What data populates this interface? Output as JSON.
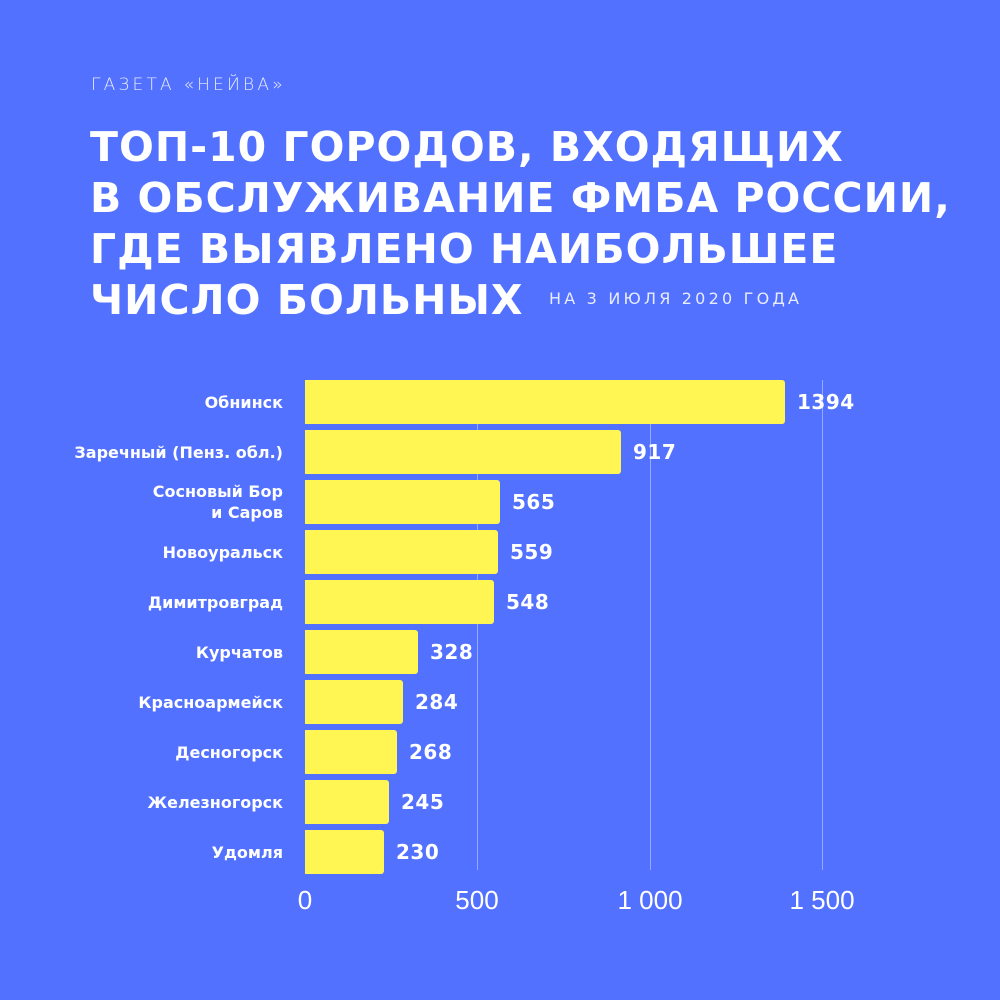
{
  "header": {
    "publisher": "ГАЗЕТА «НЕЙВА»",
    "title_lines": [
      "ТОП-10 ГОРОДОВ, ВХОДЯЩИХ",
      "В ОБСЛУЖИВАНИЕ ФМБА РОССИИ,",
      "ГДЕ ВЫЯВЛЕНО НАИБОЛЬШЕЕ",
      "ЧИСЛО БОЛЬНЫХ"
    ],
    "subtitle": "НА 3 ИЮЛЯ 2020 ГОДА"
  },
  "colors": {
    "background": "#5271FF",
    "bar": "#FFF553",
    "text": "#FFFFFF",
    "gridline": "#AABEFF"
  },
  "chart_data": {
    "type": "bar",
    "orientation": "horizontal",
    "title": "ТОП-10 ГОРОДОВ, ВХОДЯЩИХ В ОБСЛУЖИВАНИЕ ФМБА РОССИИ, ГДЕ ВЫЯВЛЕНО НАИБОЛЬШЕЕ ЧИСЛО БОЛЬНЫХ",
    "subtitle": "НА 3 ИЮЛЯ 2020 ГОДА",
    "categories": [
      "Обнинск",
      "Заречный (Пенз. обл.)",
      "Сосновый Бор\nи Саров",
      "Новоуральск",
      "Димитровград",
      "Курчатов",
      "Красноармейск",
      "Десногорск",
      "Железногорск",
      "Удомля"
    ],
    "category_lines": [
      [
        "Обнинск"
      ],
      [
        "Заречный (Пенз. обл.)"
      ],
      [
        "Сосновый Бор",
        "и Саров"
      ],
      [
        "Новоуральск"
      ],
      [
        "Димитровград"
      ],
      [
        "Курчатов"
      ],
      [
        "Красноармейск"
      ],
      [
        "Десногорск"
      ],
      [
        "Железногорск"
      ],
      [
        "Удомля"
      ]
    ],
    "values": [
      1394,
      917,
      565,
      559,
      548,
      328,
      284,
      268,
      245,
      230
    ],
    "value_labels": [
      "1394",
      "917",
      "565",
      "559",
      "548",
      "328",
      "284",
      "268",
      "245",
      "230"
    ],
    "xlabel": "",
    "ylabel": "",
    "xlim": [
      0,
      1500
    ],
    "x_ticks": [
      0,
      500,
      1000,
      1500
    ],
    "x_tick_labels": [
      "0",
      "500",
      "1 000",
      "1 500"
    ],
    "grid": "vertical",
    "legend": null
  }
}
